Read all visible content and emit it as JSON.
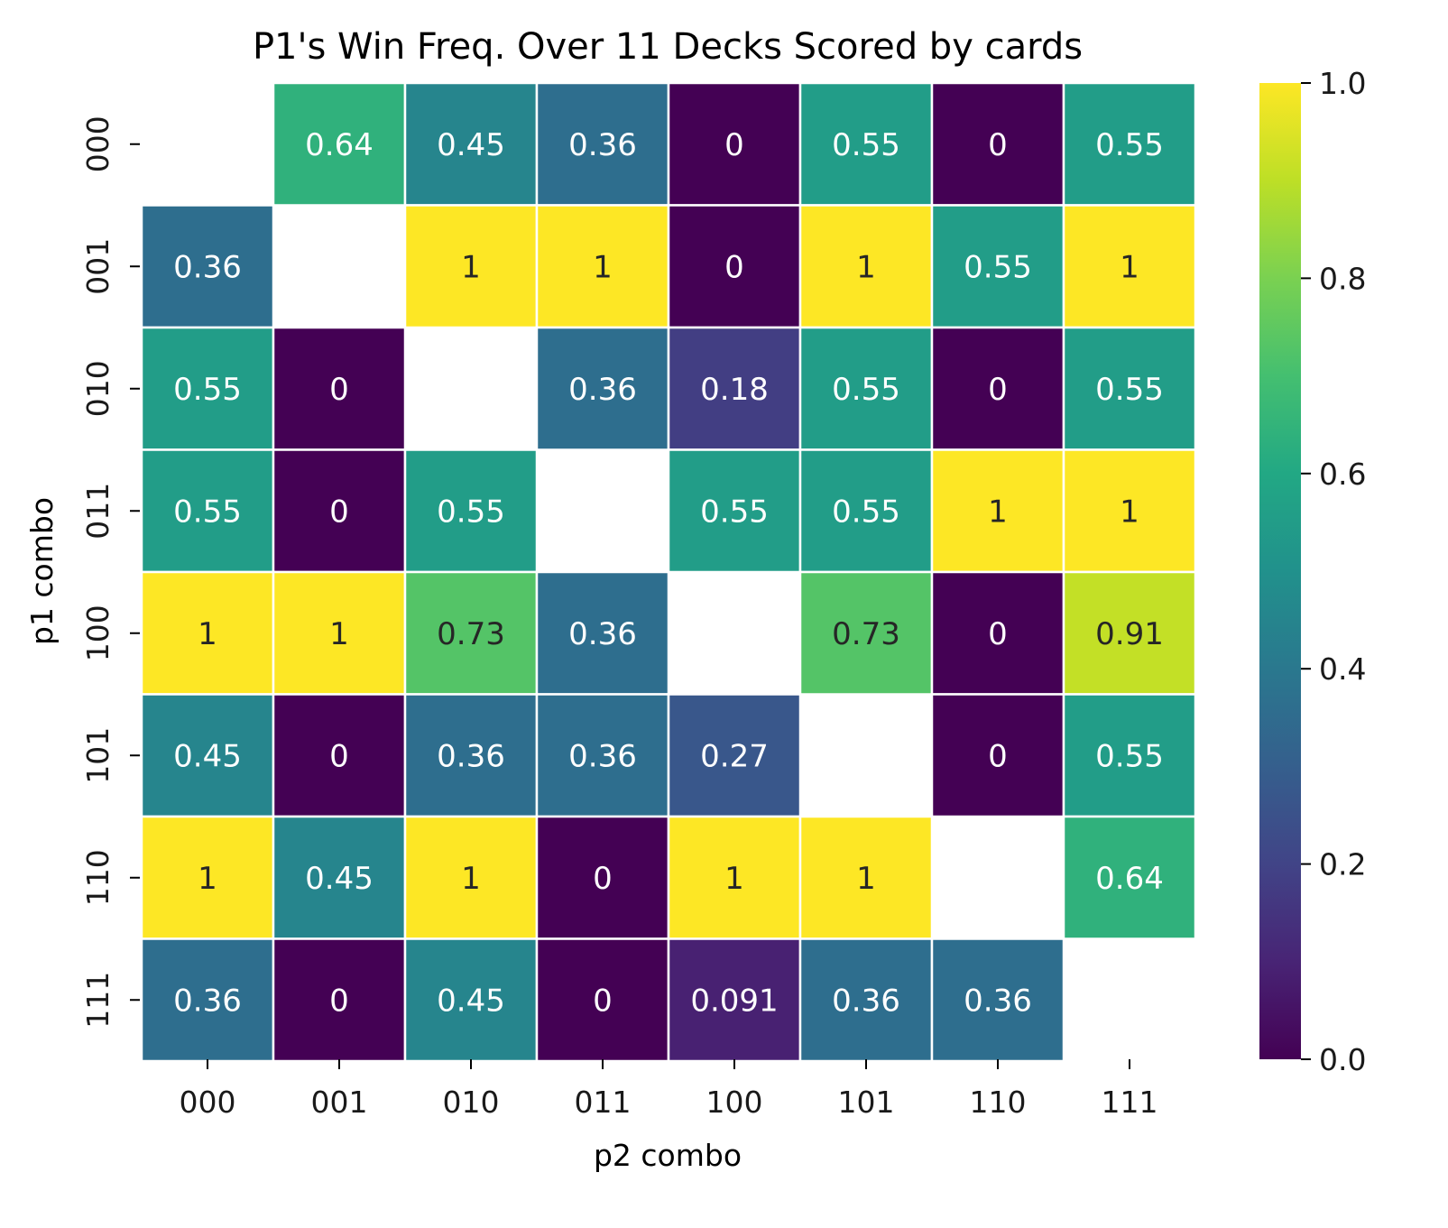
{
  "chart_data": {
    "type": "heatmap",
    "title": "P1's Win Freq. Over 11 Decks Scored by cards",
    "xlabel": "p2 combo",
    "ylabel": "p1 combo",
    "x_categories": [
      "000",
      "001",
      "010",
      "011",
      "100",
      "101",
      "110",
      "111"
    ],
    "y_categories": [
      "000",
      "001",
      "010",
      "011",
      "100",
      "101",
      "110",
      "111"
    ],
    "values": [
      [
        null,
        0.64,
        0.45,
        0.36,
        0,
        0.55,
        0,
        0.55
      ],
      [
        0.36,
        null,
        1,
        1,
        0,
        1,
        0.55,
        1
      ],
      [
        0.55,
        0,
        null,
        0.36,
        0.18,
        0.55,
        0,
        0.55
      ],
      [
        0.55,
        0,
        0.55,
        null,
        0.55,
        0.55,
        1,
        1
      ],
      [
        1,
        1,
        0.73,
        0.36,
        null,
        0.73,
        0,
        0.91
      ],
      [
        0.45,
        0,
        0.36,
        0.36,
        0.27,
        null,
        0,
        0.55
      ],
      [
        1,
        0.45,
        1,
        0,
        1,
        1,
        null,
        0.64
      ],
      [
        0.36,
        0,
        0.45,
        0,
        0.091,
        0.36,
        0.36,
        null
      ]
    ],
    "colormap": "viridis",
    "vmin": 0,
    "vmax": 1,
    "colorbar_ticks": [
      "0.0",
      "0.2",
      "0.4",
      "0.6",
      "0.8",
      "1.0"
    ],
    "grid_line_color": "#ffffff",
    "dark_text_color": "#262626",
    "light_text_color": "#ffffff"
  }
}
